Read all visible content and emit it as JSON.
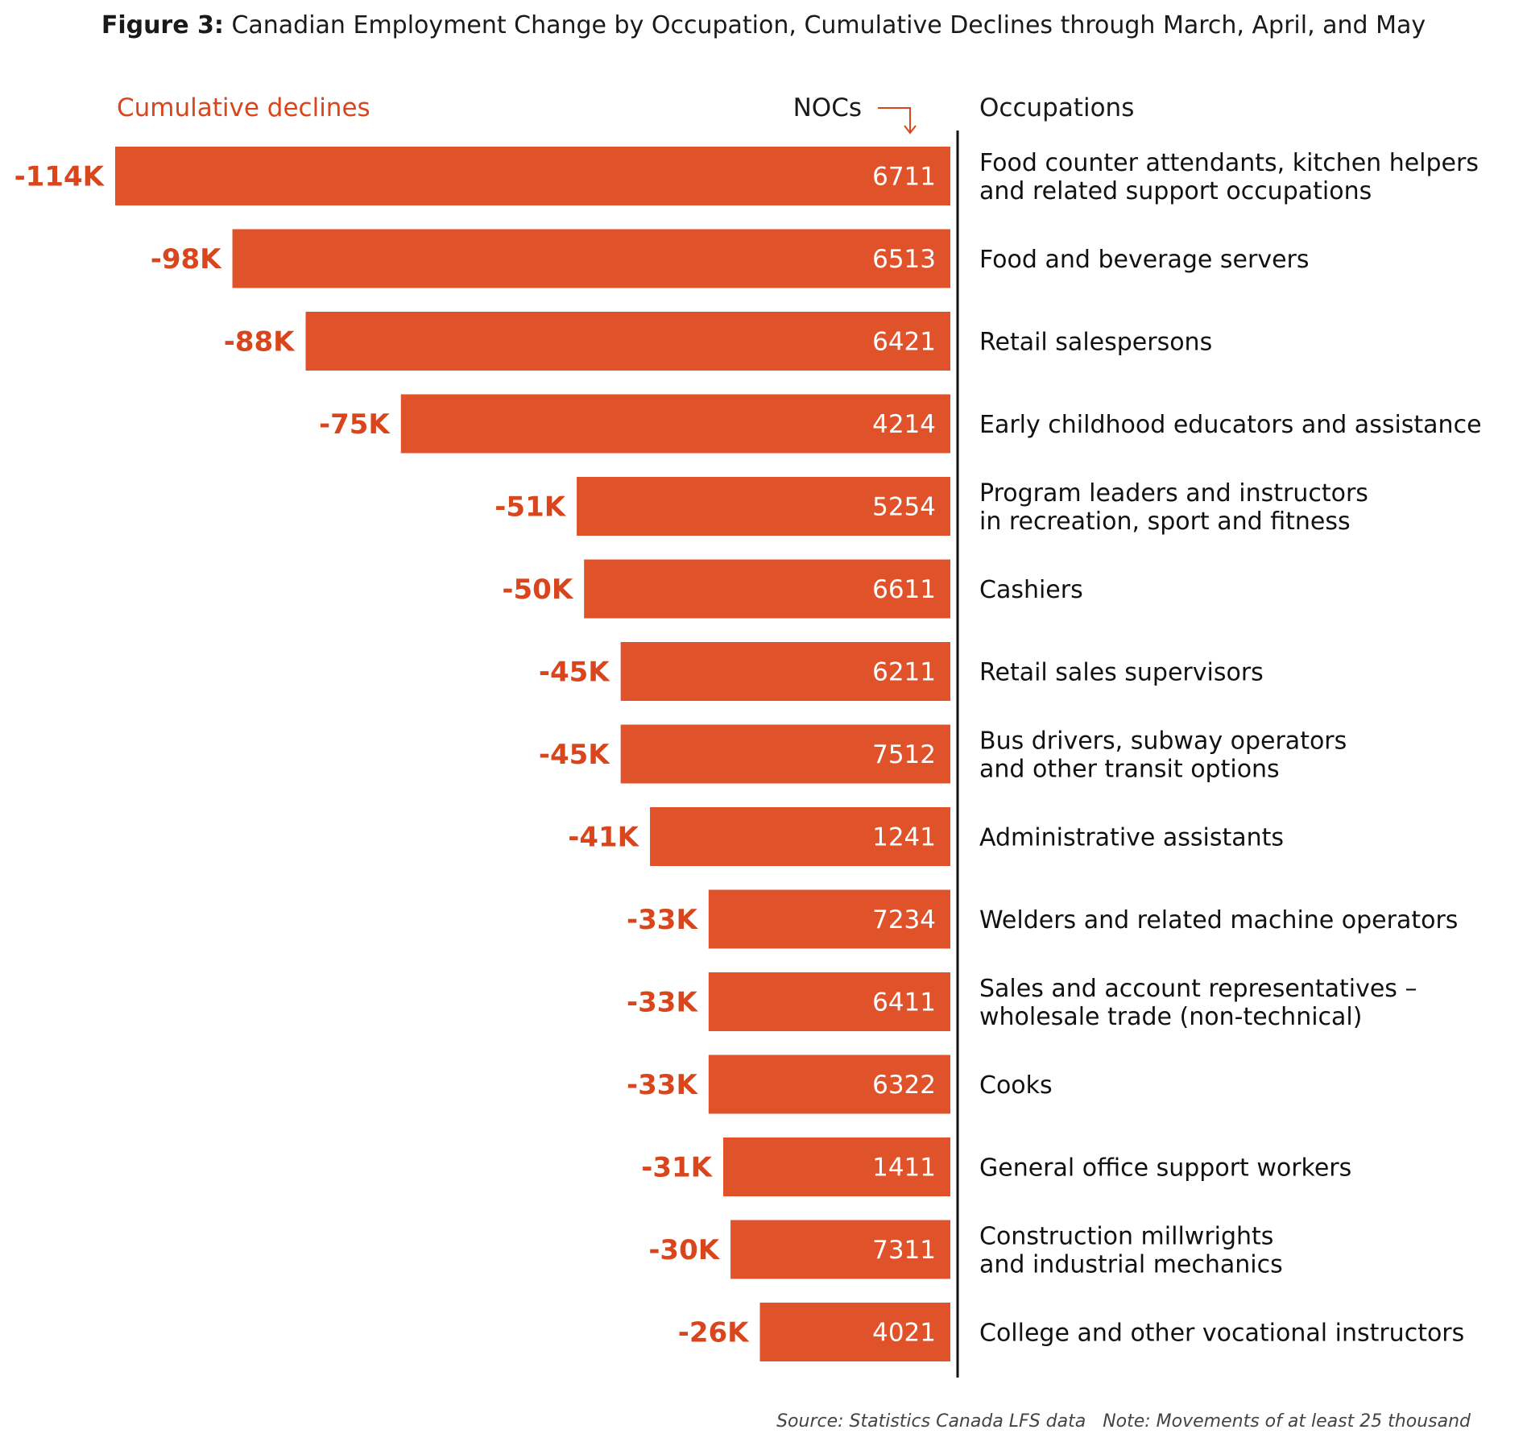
{
  "title": {
    "label": "Figure 3:",
    "text": " Canadian Employment Change by Occupation, Cumulative Declines through March, April, and May"
  },
  "headers": {
    "left": "Cumulative declines",
    "middle": "NOCs",
    "right": "Occupations"
  },
  "colors": {
    "bar": "#e0522a",
    "value_text": "#d9451c",
    "axis": "#111111",
    "noc_text": "#ffffff"
  },
  "chart_data": {
    "type": "bar",
    "orientation": "horizontal",
    "title": "Canadian Employment Change by Occupation, Cumulative Declines through March, April, and May",
    "xlabel": "Cumulative declines",
    "ylabel": "Occupations",
    "value_unit": "thousands",
    "xlim": [
      -114,
      0
    ],
    "bars": [
      {
        "value": -114,
        "label": "-114K",
        "noc": "6711",
        "occupation": [
          "Food counter attendants, kitchen helpers",
          "and related support occupations"
        ]
      },
      {
        "value": -98,
        "label": "-98K",
        "noc": "6513",
        "occupation": [
          "Food and beverage servers"
        ]
      },
      {
        "value": -88,
        "label": "-88K",
        "noc": "6421",
        "occupation": [
          "Retail salespersons"
        ]
      },
      {
        "value": -75,
        "label": "-75K",
        "noc": "4214",
        "occupation": [
          "Early childhood educators and assistance"
        ]
      },
      {
        "value": -51,
        "label": "-51K",
        "noc": "5254",
        "occupation": [
          "Program leaders and instructors",
          "in recreation, sport and fitness"
        ]
      },
      {
        "value": -50,
        "label": "-50K",
        "noc": "6611",
        "occupation": [
          "Cashiers"
        ]
      },
      {
        "value": -45,
        "label": "-45K",
        "noc": "6211",
        "occupation": [
          "Retail sales supervisors"
        ]
      },
      {
        "value": -45,
        "label": "-45K",
        "noc": "7512",
        "occupation": [
          "Bus drivers, subway operators",
          "and other transit options"
        ]
      },
      {
        "value": -41,
        "label": "-41K",
        "noc": "1241",
        "occupation": [
          "Administrative assistants"
        ]
      },
      {
        "value": -33,
        "label": "-33K",
        "noc": "7234",
        "occupation": [
          "Welders and related machine operators"
        ]
      },
      {
        "value": -33,
        "label": "-33K",
        "noc": "6411",
        "occupation": [
          "Sales and account representatives –",
          "wholesale trade (non-technical)"
        ]
      },
      {
        "value": -33,
        "label": "-33K",
        "noc": "6322",
        "occupation": [
          "Cooks"
        ]
      },
      {
        "value": -31,
        "label": "-31K",
        "noc": "1411",
        "occupation": [
          "General office support workers"
        ]
      },
      {
        "value": -30,
        "label": "-30K",
        "noc": "7311",
        "occupation": [
          "Construction millwrights",
          "and industrial mechanics"
        ]
      },
      {
        "value": -26,
        "label": "-26K",
        "noc": "4021",
        "occupation": [
          "College and other vocational instructors"
        ]
      }
    ]
  },
  "footer": {
    "source": "Source: Statistics Canada LFS data",
    "note": "Note: Movements of at least 25 thousand"
  }
}
